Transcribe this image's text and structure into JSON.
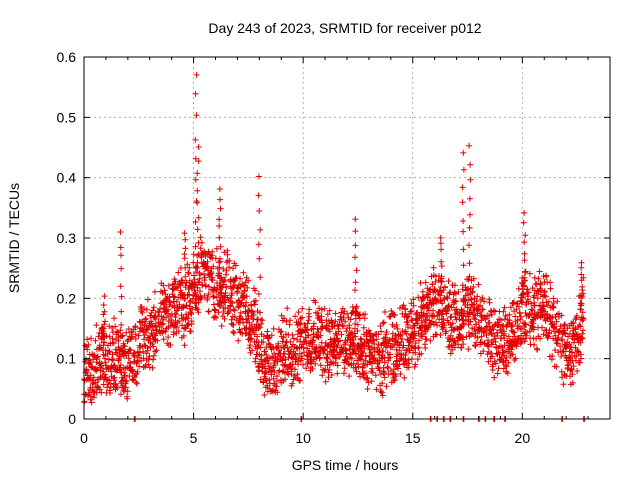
{
  "chart_data": {
    "type": "scatter",
    "title": "Day 243 of 2023, SRMTID for receiver p012",
    "xlabel": "GPS time / hours",
    "ylabel": "SRMTID / TECUs",
    "xlim": [
      0,
      24
    ],
    "ylim": [
      0,
      0.6
    ],
    "x_ticks": [
      "0",
      "5",
      "10",
      "15",
      "20"
    ],
    "x_tick_values": [
      0,
      5,
      10,
      15,
      20
    ],
    "y_ticks": [
      "0",
      "0.1",
      "0.2",
      "0.3",
      "0.4",
      "0.5",
      "0.6"
    ],
    "y_tick_values": [
      0,
      0.1,
      0.2,
      0.3,
      0.4,
      0.5,
      0.6
    ],
    "grid": true,
    "marker": "plus",
    "color": "#e00000",
    "series": [
      {
        "name": "SRMTID",
        "anchors": [
          [
            0.0,
            0.06
          ],
          [
            0.3,
            0.07
          ],
          [
            0.6,
            0.09
          ],
          [
            1.0,
            0.1
          ],
          [
            1.4,
            0.1
          ],
          [
            1.8,
            0.09
          ],
          [
            2.2,
            0.1
          ],
          [
            2.6,
            0.13
          ],
          [
            3.0,
            0.14
          ],
          [
            3.4,
            0.16
          ],
          [
            3.8,
            0.18
          ],
          [
            4.2,
            0.19
          ],
          [
            4.6,
            0.19
          ],
          [
            5.0,
            0.21
          ],
          [
            5.4,
            0.24
          ],
          [
            5.8,
            0.23
          ],
          [
            6.2,
            0.22
          ],
          [
            6.6,
            0.21
          ],
          [
            7.0,
            0.2
          ],
          [
            7.4,
            0.18
          ],
          [
            7.8,
            0.15
          ],
          [
            8.2,
            0.1
          ],
          [
            8.6,
            0.08
          ],
          [
            9.0,
            0.11
          ],
          [
            9.5,
            0.12
          ],
          [
            10.0,
            0.13
          ],
          [
            10.5,
            0.13
          ],
          [
            11.0,
            0.13
          ],
          [
            11.5,
            0.12
          ],
          [
            12.0,
            0.12
          ],
          [
            12.5,
            0.13
          ],
          [
            13.0,
            0.11
          ],
          [
            13.5,
            0.1
          ],
          [
            14.0,
            0.12
          ],
          [
            14.5,
            0.13
          ],
          [
            15.0,
            0.14
          ],
          [
            15.5,
            0.17
          ],
          [
            16.0,
            0.2
          ],
          [
            16.5,
            0.17
          ],
          [
            17.0,
            0.16
          ],
          [
            17.5,
            0.18
          ],
          [
            18.0,
            0.17
          ],
          [
            18.5,
            0.15
          ],
          [
            19.0,
            0.12
          ],
          [
            19.5,
            0.13
          ],
          [
            20.0,
            0.19
          ],
          [
            20.5,
            0.17
          ],
          [
            21.0,
            0.2
          ],
          [
            21.5,
            0.14
          ],
          [
            22.0,
            0.11
          ],
          [
            22.4,
            0.12
          ],
          [
            22.8,
            0.17
          ]
        ],
        "spikes": [
          [
            1.7,
            0.31
          ],
          [
            5.1,
            0.57
          ],
          [
            5.2,
            0.45
          ],
          [
            6.2,
            0.38
          ],
          [
            8.0,
            0.4
          ],
          [
            12.4,
            0.33
          ],
          [
            17.3,
            0.44
          ],
          [
            17.6,
            0.45
          ],
          [
            20.1,
            0.34
          ],
          [
            16.3,
            0.3
          ],
          [
            4.6,
            0.31
          ],
          [
            0.9,
            0.2
          ],
          [
            22.7,
            0.26
          ]
        ],
        "gaps_near_zero": [
          2.3,
          9.9,
          15.8,
          16.1,
          16.4,
          16.7,
          17.3,
          18.0,
          18.3,
          18.7,
          19.2,
          21.8,
          22.8
        ]
      }
    ]
  }
}
